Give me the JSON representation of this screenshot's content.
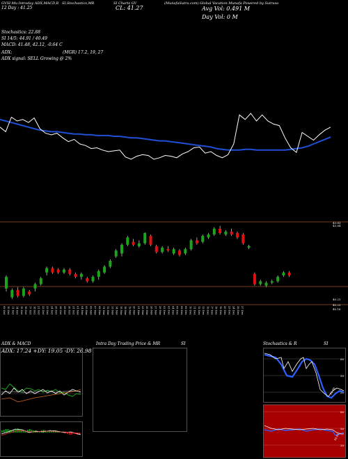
{
  "header": {
    "line1": "GVSI-Mu Intraday ADX,MACD,R",
    "line1b": "SI,Stochastics,MR",
    "line1c": "SI Charts GV",
    "line1d": "(MunafaSutra.com) Global Vacation Munafa Powered by Sutrasa",
    "price_changes": "12 Day : 41.25",
    "close": "CL: 41.27",
    "avg_vol": "Avg Vol: 0.491 M",
    "day_vol": "Day Vol: 0   M",
    "stochastics": "Stochastics: 22.88",
    "si": "SI 14/5: 44.91 / 40.49",
    "macd": "MACD: 41.48, 42.12, -0.64  C",
    "adx": "ADX:",
    "mgr": "(MGR) 17.2,  19,  27",
    "signal": "ADX  signal: SELL Growing @ 2%"
  },
  "chart_data": [
    {
      "type": "line",
      "title": "",
      "series": [
        {
          "name": "price",
          "values": [
            52,
            46,
            65,
            60,
            62,
            58,
            64,
            50,
            44,
            42,
            44,
            38,
            33,
            36,
            30,
            28,
            24,
            25,
            22,
            20,
            21,
            22,
            13,
            10,
            14,
            16,
            15,
            10,
            12,
            15,
            14,
            12,
            17,
            20,
            25,
            26,
            18,
            20,
            15,
            12,
            16,
            30,
            68,
            62,
            70,
            60,
            68,
            60,
            56,
            54,
            38,
            25,
            19,
            45,
            40,
            35,
            42,
            48,
            52
          ]
        },
        {
          "name": "average",
          "values": [
            62,
            60,
            58,
            56,
            54,
            52,
            50,
            48,
            47,
            46,
            46,
            45,
            44,
            43,
            43,
            42,
            42,
            41,
            41,
            41,
            40,
            40,
            39,
            38,
            38,
            37,
            36,
            35,
            34,
            34,
            33,
            32,
            31,
            30,
            29,
            28,
            27,
            26,
            24,
            23,
            22,
            22,
            22,
            23,
            23,
            22,
            22,
            22,
            22,
            22,
            22,
            23,
            24,
            25,
            27,
            30,
            33,
            36,
            39
          ]
        }
      ]
    },
    {
      "type": "candlestick",
      "x": [
        "09 Oct",
        "10 Oct",
        "11 Oct",
        "14 Oct",
        "15 Oct",
        "16 Oct",
        "17 Oct",
        "18 Oct",
        "21 Oct",
        "22 Oct",
        "23 Oct",
        "24 Oct",
        "25 Oct",
        "28 Oct",
        "29 Oct",
        "30 Oct",
        "31 Oct",
        "01 Nov",
        "04 Nov",
        "05 Nov",
        "06 Nov",
        "07 Nov",
        "08 Nov",
        "11 Nov",
        "12 Nov",
        "13 Nov",
        "14 Nov",
        "15 Nov",
        "18 Nov",
        "19 Nov",
        "20 Nov",
        "21 Nov",
        "22 Nov",
        "25 Nov",
        "26 Nov",
        "27 Nov",
        "29 Nov",
        "02 Dec",
        "03 Dec",
        "04 Dec",
        "05 Dec",
        "06 Dec",
        "09 Dec",
        "10 Dec",
        "11 Dec",
        "12 Dec",
        "13 Dec",
        "16 Dec",
        "17 Dec",
        "18 Dec",
        "19 Dec",
        "20 Dec",
        "23 Dec",
        "24 Dec",
        "26 Dec",
        "27 Dec"
      ],
      "price_labels": [
        "43.83",
        "43.84",
        "40.21",
        "40.23",
        "40.16"
      ]
    }
  ],
  "panels": {
    "adx_title": "ADX  & MACD",
    "adx_values": "ADX: 17.24  +DY: 19.05 -DY: 26.98",
    "intraday_title": "Intra  Day Trading Price  & MR",
    "intraday_si": "SI",
    "stoch_title": "Stochastics & R",
    "stoch_si": "SI",
    "stoch_val": "22.88",
    "rsi_val": "44.91",
    "scale": [
      "80",
      "50",
      "20"
    ]
  },
  "colors": {
    "background": "#000000",
    "price_line": "#ffffff",
    "average_line": "#1f4fd6",
    "bull": "#1aa51a",
    "bear": "#e01010",
    "grid_line": "#a0522d",
    "rsi_bg": "#a80000",
    "stoch_blue": "#2f5fff"
  }
}
